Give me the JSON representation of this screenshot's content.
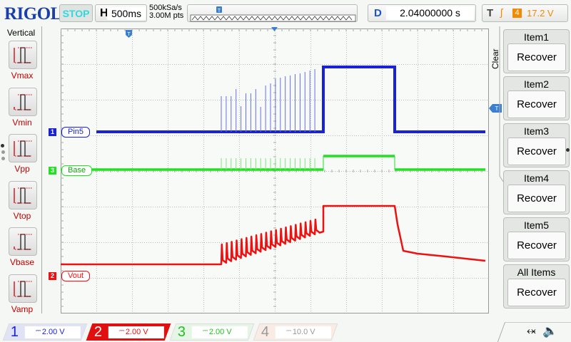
{
  "header": {
    "logo": "RIGOL",
    "run_state": "STOP",
    "horizontal_label": "H",
    "timebase": "500ms",
    "sample_rate": "500kSa/s",
    "memory_depth": "3.00M pts",
    "delay_label": "D",
    "delay": "2.04000000 s",
    "trigger_label": "T",
    "trigger_edge": "rising-edge-icon",
    "trigger_source": "4",
    "trigger_level": "17.2 V"
  },
  "left_panel": {
    "title": "Vertical",
    "items": [
      {
        "label": "Vmax"
      },
      {
        "label": "Vmin"
      },
      {
        "label": "Vpp"
      },
      {
        "label": "Vtop"
      },
      {
        "label": "Vbase"
      },
      {
        "label": "Vamp"
      }
    ]
  },
  "right_panel": {
    "clear_label": "Clear",
    "items": [
      {
        "title": "Item1",
        "action": "Recover"
      },
      {
        "title": "Item2",
        "action": "Recover"
      },
      {
        "title": "Item3",
        "action": "Recover"
      },
      {
        "title": "Item4",
        "action": "Recover"
      },
      {
        "title": "Item5",
        "action": "Recover"
      },
      {
        "title": "All Items",
        "action": "Recover"
      }
    ]
  },
  "traces": [
    {
      "channel": "1",
      "label": "Pin5",
      "color": "#1a22d8"
    },
    {
      "channel": "3",
      "label": "Base",
      "color": "#22e022"
    },
    {
      "channel": "2",
      "label": "Vout",
      "color": "#ee1111"
    }
  ],
  "trigger_marker": "T",
  "channels": [
    {
      "number": "1",
      "coupling": "DC",
      "scale": "2.00 V",
      "color": "#1a22d8"
    },
    {
      "number": "2",
      "coupling": "DC",
      "scale": "2.00 V",
      "color": "#ee1111"
    },
    {
      "number": "3",
      "coupling": "DC",
      "scale": "2.00 V",
      "color": "#22c022"
    },
    {
      "number": "4",
      "coupling": "DC",
      "scale": "10.0 V",
      "color": "#999999"
    }
  ],
  "status_icons": [
    "usb-icon",
    "speaker-icon"
  ]
}
